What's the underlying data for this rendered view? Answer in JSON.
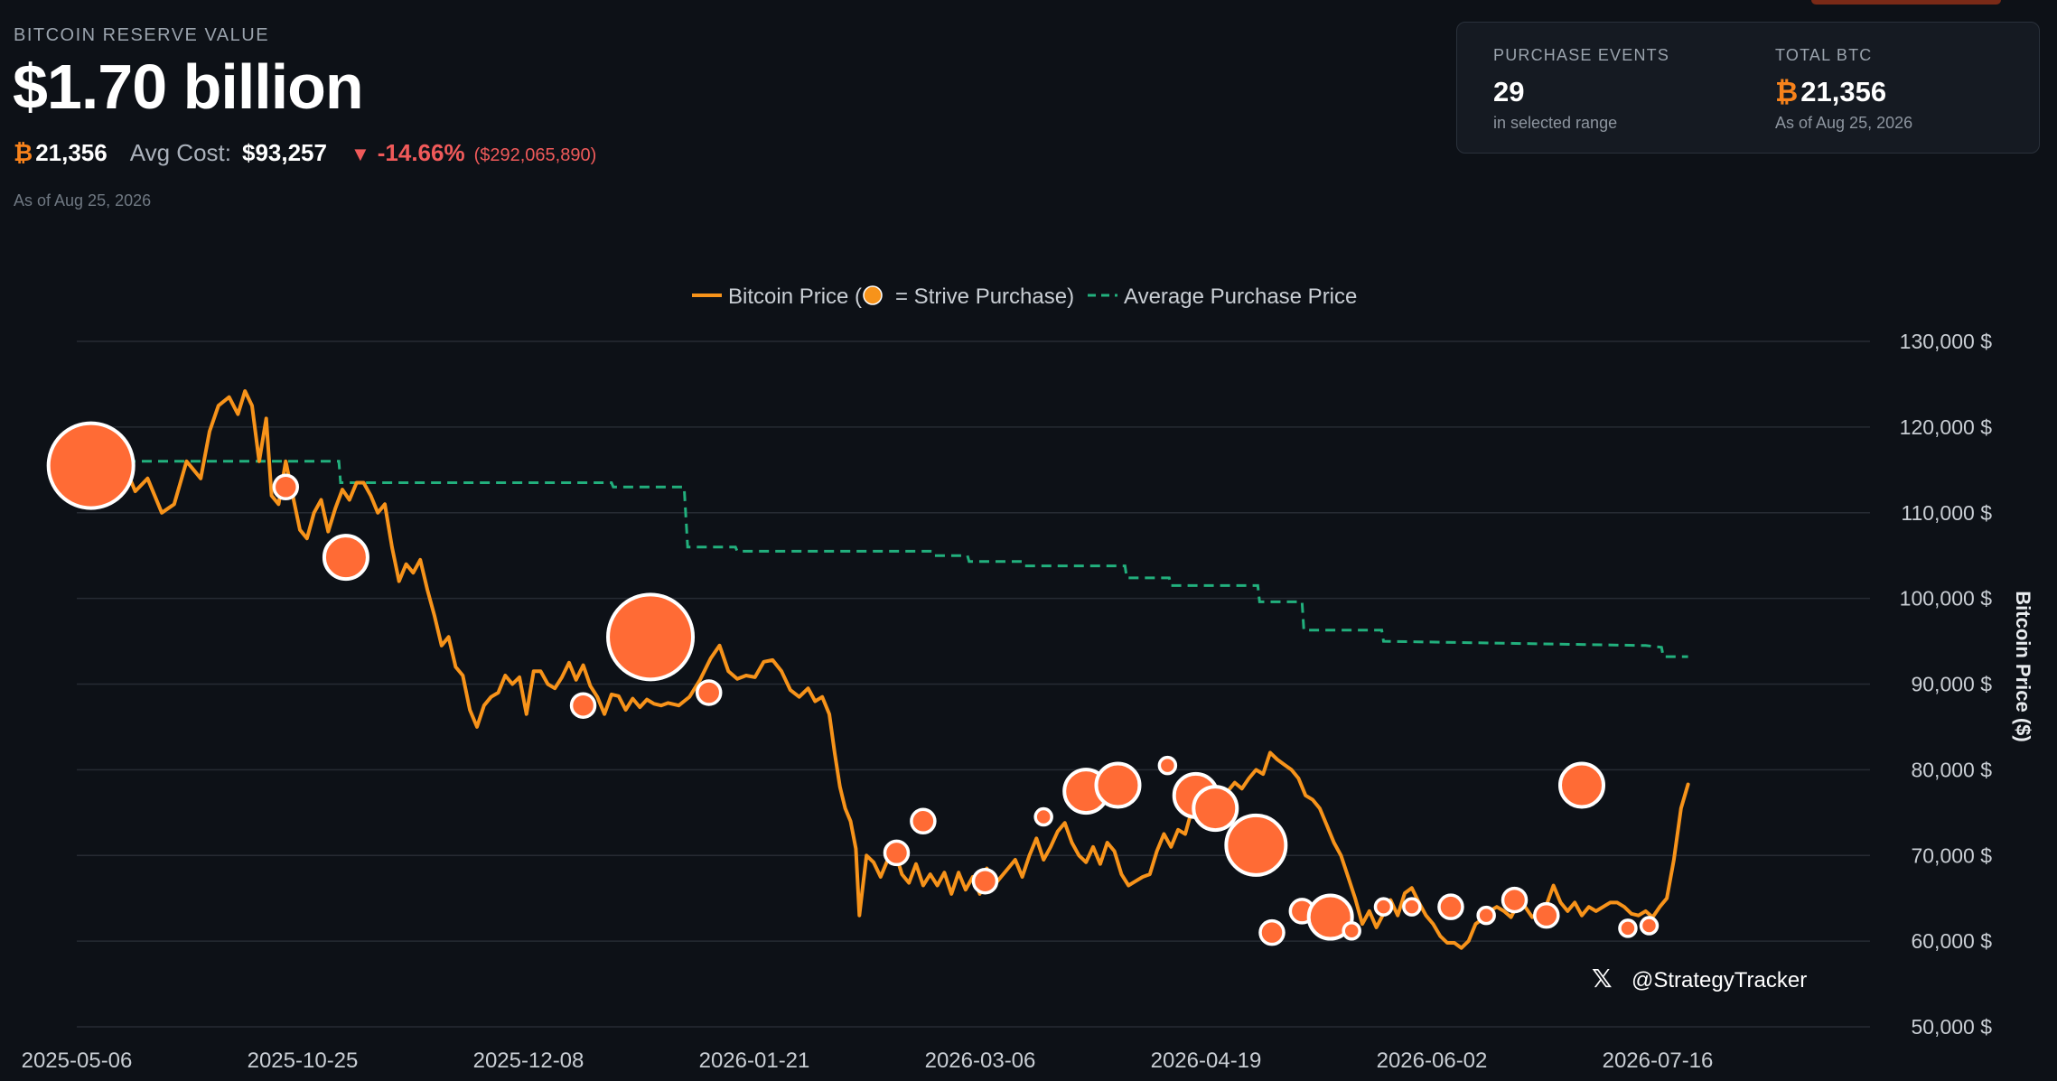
{
  "header": {
    "reserve_label": "BITCOIN RESERVE VALUE",
    "reserve_value": "$1.70 billion",
    "btc_symbol": "₿",
    "btc_amount": "21,356",
    "avg_cost_label": "Avg Cost:",
    "avg_cost_value": "$93,257",
    "change_arrow": "▼",
    "change_pct": "-14.66%",
    "change_abs": "($292,065,890)",
    "as_of": "As of Aug 25, 2026"
  },
  "summary_card": {
    "purchase_events_label": "PURCHASE EVENTS",
    "purchase_events_value": "29",
    "purchase_events_sub": "in selected range",
    "total_btc_label": "TOTAL BTC",
    "total_btc_symbol": "₿",
    "total_btc_value": "21,356",
    "total_btc_sub": "As of Aug 25, 2026"
  },
  "colors": {
    "background": "#0d1117",
    "price_line": "#f7931a",
    "purchase_marker": "#ff6b35",
    "average_line": "#22b07d",
    "negative": "#f05a5a",
    "grid": "#2a2f37"
  },
  "chart_data": {
    "type": "line",
    "legend": {
      "price_label_pre": "Bitcoin Price (",
      "price_label_post": "= Strive Purchase)",
      "average_label": "Average Purchase Price",
      "placement": "top-center"
    },
    "ylabel": "Bitcoin Price ($)",
    "ylim": [
      50000,
      130000
    ],
    "y_ticks": [
      {
        "value": 130000,
        "label": "130,000 $"
      },
      {
        "value": 120000,
        "label": "120,000 $"
      },
      {
        "value": 110000,
        "label": "110,000 $"
      },
      {
        "value": 100000,
        "label": "100,000 $"
      },
      {
        "value": 90000,
        "label": "90,000 $"
      },
      {
        "value": 80000,
        "label": "80,000 $"
      },
      {
        "value": 70000,
        "label": "70,000 $"
      },
      {
        "value": 60000,
        "label": "60,000 $"
      },
      {
        "value": 50000,
        "label": "50,000 $"
      }
    ],
    "x_ticks": [
      "2025-05-06",
      "2025-10-25",
      "2025-12-08",
      "2026-01-21",
      "2026-03-06",
      "2026-04-19",
      "2026-06-02",
      "2026-07-16"
    ],
    "grid": true,
    "series": [
      {
        "name": "Bitcoin Price",
        "points": [
          [
            0,
            115500
          ],
          [
            1.5,
            114000
          ],
          [
            2.5,
            116500
          ],
          [
            3.3,
            112500
          ],
          [
            4,
            114000
          ],
          [
            4.8,
            110000
          ],
          [
            5.5,
            111000
          ],
          [
            6.2,
            116000
          ],
          [
            7,
            114000
          ],
          [
            7.5,
            119500
          ],
          [
            8,
            122500
          ],
          [
            8.6,
            123500
          ],
          [
            9.1,
            121500
          ],
          [
            9.5,
            124200
          ],
          [
            9.9,
            122500
          ],
          [
            10.3,
            116000
          ],
          [
            10.7,
            121000
          ],
          [
            11,
            112000
          ],
          [
            11.4,
            111000
          ],
          [
            11.8,
            116000
          ],
          [
            12.2,
            112000
          ],
          [
            12.6,
            108000
          ],
          [
            13,
            107000
          ],
          [
            13.4,
            110000
          ],
          [
            13.8,
            111500
          ],
          [
            14.2,
            107800
          ],
          [
            14.6,
            110500
          ],
          [
            15,
            112700
          ],
          [
            15.4,
            111500
          ],
          [
            15.8,
            113500
          ],
          [
            16.2,
            113500
          ],
          [
            16.6,
            112000
          ],
          [
            17,
            110000
          ],
          [
            17.4,
            111000
          ],
          [
            17.8,
            106000
          ],
          [
            18.2,
            102000
          ],
          [
            18.6,
            104000
          ],
          [
            19,
            103000
          ],
          [
            19.4,
            104500
          ],
          [
            19.8,
            101000
          ],
          [
            20.2,
            98000
          ],
          [
            20.6,
            94500
          ],
          [
            21,
            95500
          ],
          [
            21.4,
            92000
          ],
          [
            21.8,
            91000
          ],
          [
            22.2,
            87000
          ],
          [
            22.6,
            85000
          ],
          [
            23,
            87500
          ],
          [
            23.4,
            88500
          ],
          [
            23.8,
            89000
          ],
          [
            24.2,
            91000
          ],
          [
            24.6,
            90000
          ],
          [
            25,
            90800
          ],
          [
            25.4,
            86500
          ],
          [
            25.8,
            91500
          ],
          [
            26.2,
            91500
          ],
          [
            26.6,
            90000
          ],
          [
            27,
            89500
          ],
          [
            27.4,
            90800
          ],
          [
            27.8,
            92500
          ],
          [
            28.2,
            90500
          ],
          [
            28.6,
            92200
          ],
          [
            29,
            89800
          ],
          [
            29.4,
            88500
          ],
          [
            29.8,
            86500
          ],
          [
            30.2,
            88800
          ],
          [
            30.6,
            88600
          ],
          [
            31,
            87000
          ],
          [
            31.4,
            88300
          ],
          [
            31.8,
            87300
          ],
          [
            32.2,
            88200
          ],
          [
            32.6,
            87700
          ],
          [
            33,
            87500
          ],
          [
            33.4,
            87800
          ],
          [
            34,
            87500
          ],
          [
            34.6,
            88500
          ],
          [
            35.2,
            90500
          ],
          [
            35.8,
            93000
          ],
          [
            36.3,
            94500
          ],
          [
            36.8,
            91500
          ],
          [
            37.3,
            90600
          ],
          [
            37.8,
            91000
          ],
          [
            38.3,
            90800
          ],
          [
            38.8,
            92600
          ],
          [
            39.3,
            92800
          ],
          [
            39.8,
            91500
          ],
          [
            40.3,
            89300
          ],
          [
            40.8,
            88500
          ],
          [
            41.3,
            89500
          ],
          [
            41.7,
            88000
          ],
          [
            42.1,
            88500
          ],
          [
            42.5,
            86500
          ],
          [
            42.8,
            82000
          ],
          [
            43.1,
            78000
          ],
          [
            43.4,
            75500
          ],
          [
            43.7,
            74000
          ],
          [
            44.0,
            70800
          ],
          [
            44.2,
            63000
          ],
          [
            44.4,
            66500
          ],
          [
            44.6,
            70000
          ],
          [
            45.0,
            69200
          ],
          [
            45.4,
            67500
          ],
          [
            45.8,
            69500
          ],
          [
            46.2,
            70500
          ],
          [
            46.6,
            67800
          ],
          [
            47,
            66800
          ],
          [
            47.4,
            69000
          ],
          [
            47.8,
            66500
          ],
          [
            48.2,
            67800
          ],
          [
            48.6,
            66500
          ],
          [
            49,
            68000
          ],
          [
            49.4,
            65500
          ],
          [
            49.8,
            68000
          ],
          [
            50.2,
            66000
          ],
          [
            50.6,
            67500
          ],
          [
            51,
            65500
          ],
          [
            51.4,
            68500
          ],
          [
            51.8,
            66500
          ],
          [
            52.2,
            67500
          ],
          [
            52.6,
            68500
          ],
          [
            53,
            69500
          ],
          [
            53.4,
            67500
          ],
          [
            53.8,
            70000
          ],
          [
            54.2,
            72000
          ],
          [
            54.6,
            69500
          ],
          [
            55,
            71000
          ],
          [
            55.4,
            72800
          ],
          [
            55.8,
            73800
          ],
          [
            56.2,
            71500
          ],
          [
            56.6,
            70000
          ],
          [
            57,
            69200
          ],
          [
            57.4,
            71000
          ],
          [
            57.8,
            69000
          ],
          [
            58.2,
            71500
          ],
          [
            58.6,
            70500
          ],
          [
            59,
            67800
          ],
          [
            59.4,
            66500
          ],
          [
            59.8,
            67000
          ],
          [
            60.2,
            67500
          ],
          [
            60.6,
            67800
          ],
          [
            61,
            70500
          ],
          [
            61.4,
            72500
          ],
          [
            61.8,
            71000
          ],
          [
            62.2,
            73000
          ],
          [
            62.6,
            72500
          ],
          [
            63,
            75500
          ],
          [
            63.4,
            76500
          ],
          [
            63.8,
            78000
          ],
          [
            64.2,
            77200
          ],
          [
            64.6,
            76000
          ],
          [
            65,
            77500
          ],
          [
            65.4,
            78500
          ],
          [
            65.8,
            77800
          ],
          [
            66.2,
            79000
          ],
          [
            66.6,
            80000
          ],
          [
            67,
            79500
          ],
          [
            67.4,
            82000
          ],
          [
            67.8,
            81200
          ],
          [
            68.2,
            80600
          ],
          [
            68.6,
            80000
          ],
          [
            69,
            79000
          ],
          [
            69.4,
            77000
          ],
          [
            69.8,
            76500
          ],
          [
            70.2,
            75500
          ],
          [
            70.6,
            73500
          ],
          [
            71,
            71500
          ],
          [
            71.4,
            70000
          ],
          [
            71.8,
            67500
          ],
          [
            72.2,
            65000
          ],
          [
            72.6,
            62000
          ],
          [
            73,
            63500
          ],
          [
            73.4,
            61600
          ],
          [
            73.8,
            63200
          ],
          [
            74.2,
            64800
          ],
          [
            74.6,
            63000
          ],
          [
            75,
            65600
          ],
          [
            75.4,
            66200
          ],
          [
            75.8,
            64500
          ],
          [
            76.2,
            63000
          ],
          [
            76.6,
            62000
          ],
          [
            77,
            60600
          ],
          [
            77.4,
            59800
          ],
          [
            77.8,
            59800
          ],
          [
            78.2,
            59200
          ],
          [
            78.6,
            60000
          ],
          [
            79,
            62000
          ],
          [
            79.4,
            62600
          ],
          [
            79.8,
            63500
          ],
          [
            80.2,
            64000
          ],
          [
            80.6,
            63500
          ],
          [
            81,
            62800
          ],
          [
            81.4,
            64400
          ],
          [
            81.8,
            64000
          ],
          [
            82.2,
            62800
          ],
          [
            82.6,
            63500
          ],
          [
            83,
            64200
          ],
          [
            83.4,
            66500
          ],
          [
            83.8,
            64500
          ],
          [
            84.2,
            63500
          ],
          [
            84.6,
            64500
          ],
          [
            85,
            63000
          ],
          [
            85.4,
            64000
          ],
          [
            85.8,
            63500
          ],
          [
            86.2,
            64000
          ],
          [
            86.6,
            64500
          ],
          [
            87,
            64500
          ],
          [
            87.4,
            64000
          ],
          [
            87.8,
            63200
          ],
          [
            88.2,
            63000
          ],
          [
            88.6,
            63500
          ],
          [
            89,
            62800
          ],
          [
            89.4,
            64000
          ],
          [
            89.8,
            65000
          ],
          [
            90.2,
            69500
          ],
          [
            90.6,
            75500
          ],
          [
            91,
            78300
          ]
        ]
      },
      {
        "name": "Average Purchase Price",
        "points": [
          [
            0,
            116000
          ],
          [
            14.8,
            116000
          ],
          [
            14.9,
            113500
          ],
          [
            30.2,
            113500
          ],
          [
            30.3,
            113000
          ],
          [
            34.3,
            113000
          ],
          [
            34.5,
            106000
          ],
          [
            37.2,
            106000
          ],
          [
            37.3,
            105500
          ],
          [
            48.3,
            105500
          ],
          [
            48.4,
            105000
          ],
          [
            50.3,
            105000
          ],
          [
            50.4,
            104300
          ],
          [
            53.4,
            104300
          ],
          [
            53.5,
            103800
          ],
          [
            59.2,
            103800
          ],
          [
            59.3,
            102400
          ],
          [
            61.7,
            102400
          ],
          [
            61.8,
            101500
          ],
          [
            66.7,
            101500
          ],
          [
            66.8,
            99600
          ],
          [
            69.2,
            99600
          ],
          [
            69.3,
            96300
          ],
          [
            73.7,
            96300
          ],
          [
            73.8,
            95000
          ],
          [
            88.6,
            94500
          ],
          [
            89.5,
            94300
          ],
          [
            89.6,
            93200
          ],
          [
            91,
            93200
          ]
        ]
      }
    ],
    "purchases": [
      {
        "x": 0.8,
        "y": 115500,
        "size": "xl"
      },
      {
        "x": 11.8,
        "y": 113000,
        "size": "s"
      },
      {
        "x": 15.2,
        "y": 104800,
        "size": "m"
      },
      {
        "x": 28.6,
        "y": 87500,
        "size": "s"
      },
      {
        "x": 32.4,
        "y": 95500,
        "size": "xl"
      },
      {
        "x": 35.7,
        "y": 89000,
        "size": "s"
      },
      {
        "x": 46.3,
        "y": 70300,
        "size": "s"
      },
      {
        "x": 47.8,
        "y": 74000,
        "size": "s"
      },
      {
        "x": 51.3,
        "y": 67000,
        "size": "s"
      },
      {
        "x": 54.6,
        "y": 74500,
        "size": "xs"
      },
      {
        "x": 57.0,
        "y": 77500,
        "size": "m"
      },
      {
        "x": 58.8,
        "y": 78200,
        "size": "m"
      },
      {
        "x": 61.6,
        "y": 80500,
        "size": "xs"
      },
      {
        "x": 63.2,
        "y": 77000,
        "size": "m"
      },
      {
        "x": 64.3,
        "y": 75500,
        "size": "m"
      },
      {
        "x": 66.6,
        "y": 71200,
        "size": "l"
      },
      {
        "x": 67.5,
        "y": 61000,
        "size": "s"
      },
      {
        "x": 69.2,
        "y": 63500,
        "size": "s"
      },
      {
        "x": 70.8,
        "y": 62800,
        "size": "m"
      },
      {
        "x": 72.0,
        "y": 61200,
        "size": "xs"
      },
      {
        "x": 73.8,
        "y": 64000,
        "size": "xs"
      },
      {
        "x": 75.4,
        "y": 64000,
        "size": "xs"
      },
      {
        "x": 77.6,
        "y": 64000,
        "size": "s"
      },
      {
        "x": 79.6,
        "y": 63000,
        "size": "xs"
      },
      {
        "x": 81.2,
        "y": 64800,
        "size": "s"
      },
      {
        "x": 83.0,
        "y": 63000,
        "size": "s"
      },
      {
        "x": 85.0,
        "y": 78200,
        "size": "m"
      },
      {
        "x": 87.6,
        "y": 61500,
        "size": "xs"
      },
      {
        "x": 88.8,
        "y": 61800,
        "size": "xs"
      }
    ]
  },
  "watermark": {
    "x_glyph": "𝕏",
    "handle": "@StrategyTracker"
  }
}
